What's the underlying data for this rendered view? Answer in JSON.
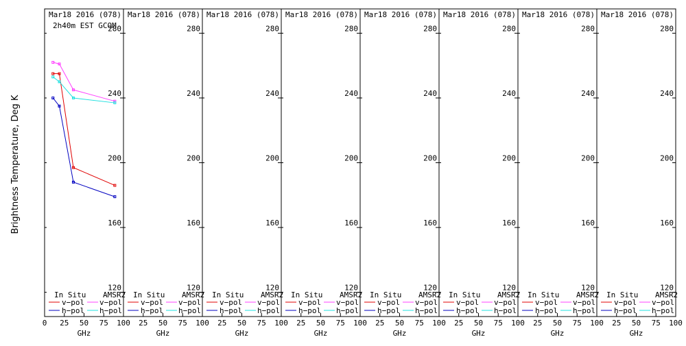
{
  "chart_data": {
    "type": "line",
    "ylabel": "Brightness Temperature, Deg K",
    "xlabel": "GHz",
    "xlim": [
      0,
      100
    ],
    "ylim": [
      105,
      295
    ],
    "x_ticks": [
      0,
      25,
      50,
      75,
      100
    ],
    "y_ticks": [
      120,
      160,
      200,
      240,
      280
    ],
    "legend": {
      "in_situ_label": "In Situ",
      "amsr2_label": "AMSR2",
      "vpol_label": "v−pol",
      "hpol_label": "h−pol"
    },
    "colors": {
      "insitu_v": "#e00000",
      "insitu_h": "#0000c0",
      "amsr2_v": "#ff40ff",
      "amsr2_h": "#20e0e0"
    },
    "panels": [
      {
        "title": "Mar18 2016 (078)",
        "subtitle": "2h40m EST GCOM",
        "series": [
          {
            "name": "In Situ v-pol",
            "color_key": "insitu_v",
            "x": [
              10.65,
              18.7,
              36.5,
              89
            ],
            "y": [
              255,
              255,
              197,
              186
            ]
          },
          {
            "name": "In Situ h-pol",
            "color_key": "insitu_h",
            "x": [
              10.65,
              18.7,
              36.5,
              89
            ],
            "y": [
              240,
              235,
              188,
              179
            ]
          },
          {
            "name": "AMSR2 v-pol",
            "color_key": "amsr2_v",
            "x": [
              10.65,
              18.7,
              36.5,
              89
            ],
            "y": [
              262,
              261,
              245,
              238
            ]
          },
          {
            "name": "AMSR2 h-pol",
            "color_key": "amsr2_h",
            "x": [
              10.65,
              18.7,
              36.5,
              89
            ],
            "y": [
              253,
              250,
              240,
              237
            ]
          }
        ]
      },
      {
        "title": "Mar18 2016 (078)",
        "subtitle": "",
        "series": []
      },
      {
        "title": "Mar18 2016 (078)",
        "subtitle": "",
        "series": []
      },
      {
        "title": "Mar18 2016 (078)",
        "subtitle": "",
        "series": []
      },
      {
        "title": "Mar18 2016 (078)",
        "subtitle": "",
        "series": []
      },
      {
        "title": "Mar18 2016 (078)",
        "subtitle": "",
        "series": []
      },
      {
        "title": "Mar18 2016 (078)",
        "subtitle": "",
        "series": []
      },
      {
        "title": "Mar18 2016 (078)",
        "subtitle": "",
        "series": []
      }
    ]
  }
}
